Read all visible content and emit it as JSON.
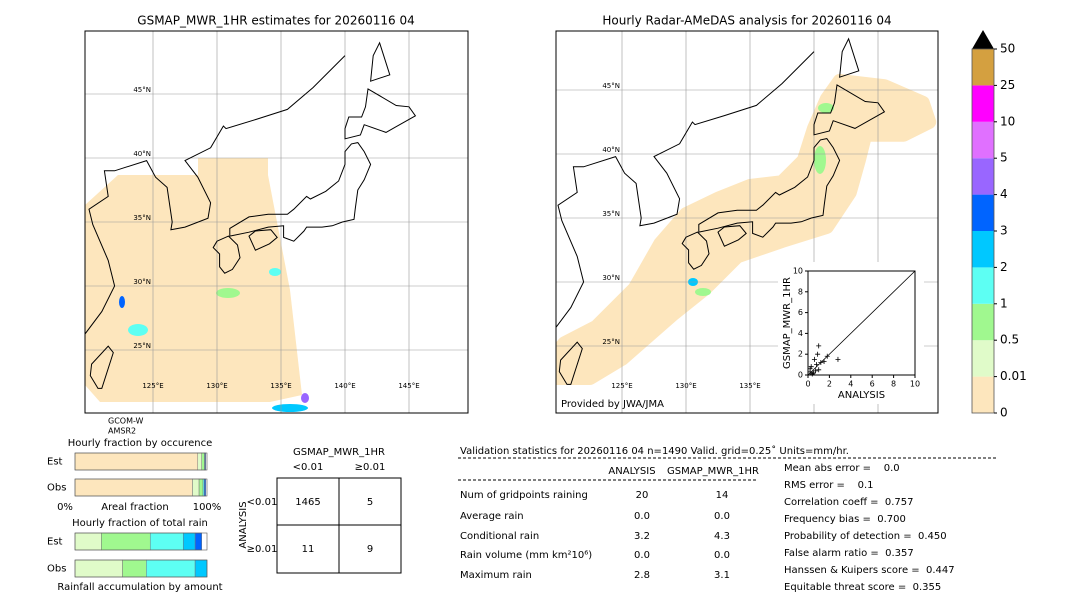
{
  "left_map": {
    "title": "GSMAP_MWR_1HR estimates for 20260116 04",
    "lat_labels": [
      "45°N",
      "40°N",
      "35°N",
      "30°N",
      "25°N"
    ],
    "lon_labels": [
      "125°E",
      "130°E",
      "135°E",
      "140°E",
      "145°E"
    ],
    "sensor_labels": [
      "GCOM-W",
      "AMSR2"
    ]
  },
  "right_map": {
    "title": "Hourly Radar-AMeDAS analysis for 20260116 04",
    "lat_labels": [
      "45°N",
      "40°N",
      "35°N",
      "30°N",
      "25°N"
    ],
    "lon_labels": [
      "125°E",
      "130°E",
      "135°E"
    ],
    "credit": "Provided by JWA/JMA"
  },
  "chart_data": [
    {
      "type": "scatter",
      "xlabel": "ANALYSIS",
      "ylabel": "GSMAP_MWR_1HR",
      "xlim": [
        0,
        10
      ],
      "ylim": [
        0,
        10
      ],
      "xticks": [
        0,
        2,
        4,
        6,
        8,
        10
      ],
      "yticks": [
        0,
        2,
        4,
        6,
        8,
        10
      ],
      "x": [
        0.2,
        0.5,
        0.3,
        0.8,
        1.0,
        0.6,
        1.2,
        0.4,
        1.5,
        0.9,
        2.8,
        1.0,
        0.2,
        0.7,
        1.8
      ],
      "y": [
        0.3,
        0.2,
        0.8,
        1.0,
        0.5,
        1.5,
        1.2,
        0.1,
        1.3,
        2.0,
        1.5,
        2.8,
        0.6,
        0.4,
        1.8
      ]
    },
    {
      "type": "colorbar",
      "bounds": [
        0,
        0.01,
        0.5,
        1,
        2,
        3,
        4,
        5,
        10,
        25,
        50
      ],
      "colors": [
        "#fde6bd",
        "#e0fbc9",
        "#a0f88f",
        "#5dfff3",
        "#00c8ff",
        "#0064ff",
        "#9966ff",
        "#e070ff",
        "#ff00ff",
        "#d4a040"
      ],
      "extend_color": "#000000"
    },
    {
      "type": "stacked_barh",
      "title": "Hourly fraction by occurence",
      "xlabel": "Areal fraction",
      "xlim": [
        0,
        100
      ],
      "xticks": [
        {
          "value": 0,
          "label": "0%"
        },
        {
          "value": 100,
          "label": "100%"
        }
      ],
      "categories": [
        "Est",
        "Obs"
      ],
      "series": [
        {
          "color": "#fde6bd",
          "values": [
            93,
            89
          ]
        },
        {
          "color": "#e0fbc9",
          "values": [
            3,
            5
          ]
        },
        {
          "color": "#a0f88f",
          "values": [
            2,
            3
          ]
        },
        {
          "color": "#5dfff3",
          "values": [
            0.5,
            1
          ]
        },
        {
          "color": "#0064ff",
          "values": [
            0.5,
            1
          ]
        }
      ]
    },
    {
      "type": "stacked_barh",
      "title": "Hourly fraction of total rain",
      "xlabel": "Rainfall accumulation by amount",
      "xlim": [
        0,
        100
      ],
      "categories": [
        "Est",
        "Obs"
      ],
      "series": [
        {
          "color": "#e0fbc9",
          "values": [
            20,
            36
          ]
        },
        {
          "color": "#a0f88f",
          "values": [
            37,
            18
          ]
        },
        {
          "color": "#5dfff3",
          "values": [
            25,
            37
          ]
        },
        {
          "color": "#00c8ff",
          "values": [
            9,
            9
          ]
        },
        {
          "color": "#0064ff",
          "values": [
            5,
            0
          ]
        }
      ]
    }
  ],
  "contingency": {
    "title": "GSMAP_MWR_1HR",
    "col_headers": [
      "<0.01",
      "≥0.01"
    ],
    "row_title": "ANALYSIS",
    "row_headers": [
      "<0.01",
      "≥0.01"
    ],
    "cells": [
      [
        "1465",
        "5"
      ],
      [
        "11",
        "9"
      ]
    ]
  },
  "validation": {
    "header": "Validation statistics for 20260116 04  n=1490 Valid. grid=0.25˚ Units=mm/hr.",
    "columns": [
      "ANALYSIS",
      "GSMAP_MWR_1HR"
    ],
    "rows": [
      [
        "Num of gridpoints raining",
        "20",
        "14"
      ],
      [
        "Average rain",
        "0.0",
        "0.0"
      ],
      [
        "Conditional rain",
        "3.2",
        "4.3"
      ],
      [
        "Rain volume (mm km²10⁶)",
        "0.0",
        "0.0"
      ],
      [
        "Maximum rain",
        "2.8",
        "3.1"
      ]
    ],
    "scores": [
      "Mean abs error =    0.0",
      "RMS error =    0.1",
      "Correlation coeff =  0.757",
      "Frequency bias =  0.700",
      "Probability of detection =  0.450",
      "False alarm ratio =  0.357",
      "Hanssen & Kuipers score =  0.447",
      "Equitable threat score =  0.355"
    ]
  }
}
